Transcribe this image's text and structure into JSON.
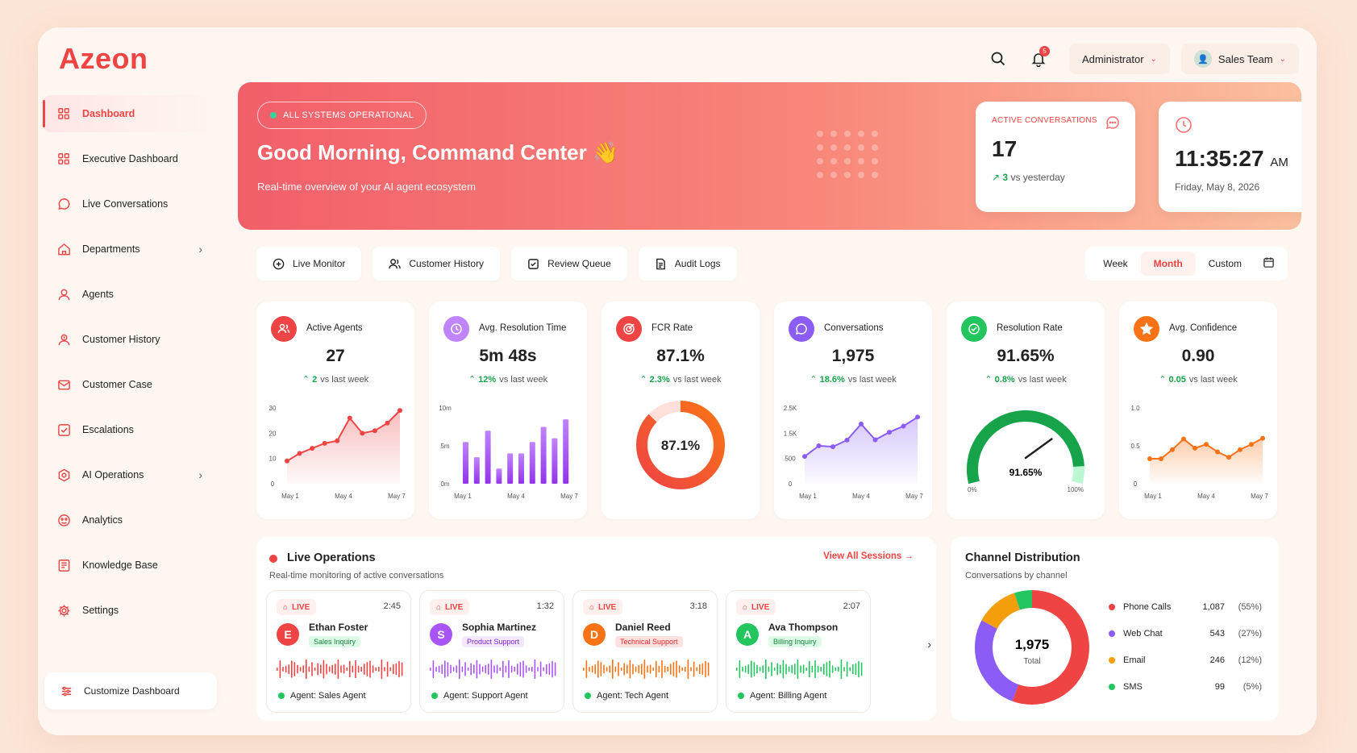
{
  "brand": {
    "logo": "Azeon"
  },
  "header": {
    "notification_count": "5",
    "role": "Administrator",
    "team": "Sales Team"
  },
  "sidebar": {
    "items": [
      {
        "label": "Dashboard",
        "icon": "grid-icon",
        "active": true
      },
      {
        "label": "Executive Dashboard",
        "icon": "grid-icon"
      },
      {
        "label": "Live Conversations",
        "icon": "chat-bubble-icon"
      },
      {
        "label": "Departments",
        "icon": "home-icon",
        "chevron": true
      },
      {
        "label": "Agents",
        "icon": "user-icon"
      },
      {
        "label": "Customer History",
        "icon": "user-history-icon"
      },
      {
        "label": "Customer Case",
        "icon": "mail-icon"
      },
      {
        "label": "Escalations",
        "icon": "checkbox-icon"
      },
      {
        "label": "AI Operations",
        "icon": "cog-hex-icon",
        "chevron": true
      },
      {
        "label": "Analytics",
        "icon": "analytics-icon"
      },
      {
        "label": "Knowledge Base",
        "icon": "book-icon"
      },
      {
        "label": "Settings",
        "icon": "gear-icon"
      }
    ],
    "customize": "Customize Dashboard"
  },
  "hero": {
    "status": "ALL SYSTEMS OPERATIONAL",
    "greeting": "Good Morning, Command Center",
    "wave": "👋",
    "subtitle": "Real-time overview of your AI agent ecosystem",
    "active": {
      "label": "ACTIVE CONVERSATIONS",
      "value": "17",
      "delta": "3",
      "delta_suffix": "vs yesterday"
    },
    "clock": {
      "time": "11:35:27",
      "ampm": "AM",
      "date": "Friday, May 8, 2026"
    }
  },
  "tabs": [
    "Live Monitor",
    "Customer History",
    "Review Queue",
    "Audit Logs"
  ],
  "range": {
    "options": [
      "Week",
      "Month",
      "Custom"
    ],
    "selected": "Month"
  },
  "kpis": [
    {
      "name": "Active Agents",
      "value": "27",
      "delta": "2",
      "suffix": "vs last week",
      "color": "#ef4444"
    },
    {
      "name": "Avg. Resolution Time",
      "value": "5m 48s",
      "delta": "12%",
      "suffix": "vs last week",
      "color": "#c084fc"
    },
    {
      "name": "FCR Rate",
      "value": "87.1%",
      "delta": "2.3%",
      "suffix": "vs last week",
      "color": "#ef4444"
    },
    {
      "name": "Conversations",
      "value": "1,975",
      "delta": "18.6%",
      "suffix": "vs last week",
      "color": "#8b5cf6"
    },
    {
      "name": "Resolution Rate",
      "value": "91.65%",
      "delta": "0.8%",
      "suffix": "vs last week",
      "color": "#22c55e"
    },
    {
      "name": "Avg. Confidence",
      "value": "0.90",
      "delta": "0.05",
      "suffix": "vs last week",
      "color": "#f97316"
    }
  ],
  "chart_data": [
    {
      "type": "area",
      "x": [
        "May 1",
        "May 2",
        "May 3",
        "May 4",
        "May 5",
        "May 6",
        "May 7",
        "May 8",
        "May 9",
        "May 10"
      ],
      "y": [
        9,
        12,
        14,
        16,
        17,
        26,
        20,
        21,
        24,
        29
      ],
      "yticks": [
        "30",
        "20",
        "10",
        "0"
      ],
      "ylim": [
        0,
        30
      ],
      "xticks": [
        "May 1",
        "May 4",
        "May 7"
      ]
    },
    {
      "type": "bar",
      "values": [
        5.5,
        3.5,
        7,
        2,
        4,
        4,
        5.5,
        7.5,
        6,
        8.5
      ],
      "yticks": [
        "10m",
        "5m",
        "0m"
      ],
      "ylim": [
        0,
        10
      ],
      "xticks": [
        "May 1",
        "May 4",
        "May 7"
      ]
    },
    {
      "type": "pie",
      "value": 87.1,
      "label": "87.1%"
    },
    {
      "type": "area",
      "x": [
        "May 1",
        "May 2",
        "May 3",
        "May 4",
        "May 5",
        "May 6",
        "May 7",
        "May 8",
        "May 9"
      ],
      "y": [
        900,
        1250,
        1220,
        1440,
        1970,
        1450,
        1700,
        1900,
        2200
      ],
      "yticks": [
        "2.5K",
        "1.5K",
        "500",
        "0"
      ],
      "ylim": [
        0,
        2500
      ],
      "xticks": [
        "May 1",
        "May 4",
        "May 7"
      ]
    },
    {
      "type": "gauge",
      "value": 91.65,
      "label": "91.65%",
      "min": "0%",
      "max": "100%"
    },
    {
      "type": "area",
      "x": [
        "May 1",
        "May 2",
        "May 3",
        "May 4",
        "May 5",
        "May 6",
        "May 7",
        "May 8",
        "May 9",
        "May 10",
        "May 11"
      ],
      "y": [
        0.33,
        0.33,
        0.45,
        0.59,
        0.47,
        0.52,
        0.42,
        0.35,
        0.45,
        0.52,
        0.6
      ],
      "yticks": [
        "1.0",
        "0.5",
        "0"
      ],
      "ylim": [
        0,
        1
      ],
      "xticks": [
        "May 1",
        "May 4",
        "May 7"
      ]
    }
  ],
  "live": {
    "title": "Live Operations",
    "desc": "Real-time monitoring of active conversations",
    "view_all": "View All Sessions",
    "sessions": [
      {
        "tag": "LIVE",
        "time": "2:45",
        "initial": "E",
        "name": "Ethan Foster",
        "dept": "Sales Inquiry",
        "agent": "Agent: Sales Agent",
        "color": "#ef4444",
        "dept_bg": "#dcfce7",
        "dept_fg": "#15803d",
        "wave": "#ef4444"
      },
      {
        "tag": "LIVE",
        "time": "1:32",
        "initial": "S",
        "name": "Sophia Martinez",
        "dept": "Product Support",
        "agent": "Agent: Support Agent",
        "color": "#a855f7",
        "dept_bg": "#f3e8ff",
        "dept_fg": "#7e22ce",
        "wave": "#a855f7"
      },
      {
        "tag": "LIVE",
        "time": "3:18",
        "initial": "D",
        "name": "Daniel Reed",
        "dept": "Technical Support",
        "agent": "Agent: Tech Agent",
        "color": "#f97316",
        "dept_bg": "#fee2e2",
        "dept_fg": "#dc2626",
        "wave": "#f97316"
      },
      {
        "tag": "LIVE",
        "time": "2:07",
        "initial": "A",
        "name": "Ava Thompson",
        "dept": "Billing Inquiry",
        "agent": "Agent: Billing Agent",
        "color": "#22c55e",
        "dept_bg": "#dcfce7",
        "dept_fg": "#15803d",
        "wave": "#22c55e"
      }
    ]
  },
  "channel": {
    "title": "Channel Distribution",
    "desc": "Conversations by channel",
    "total": "1,975",
    "total_label": "Total",
    "rows": [
      {
        "label": "Phone Calls",
        "num": "1,087",
        "pct": "(55%)",
        "color": "#ef4444"
      },
      {
        "label": "Web Chat",
        "num": "543",
        "pct": "(27%)",
        "color": "#8b5cf6"
      },
      {
        "label": "Email",
        "num": "246",
        "pct": "(12%)",
        "color": "#f59e0b"
      },
      {
        "label": "SMS",
        "num": "99",
        "pct": "(5%)",
        "color": "#22c55e"
      }
    ]
  }
}
